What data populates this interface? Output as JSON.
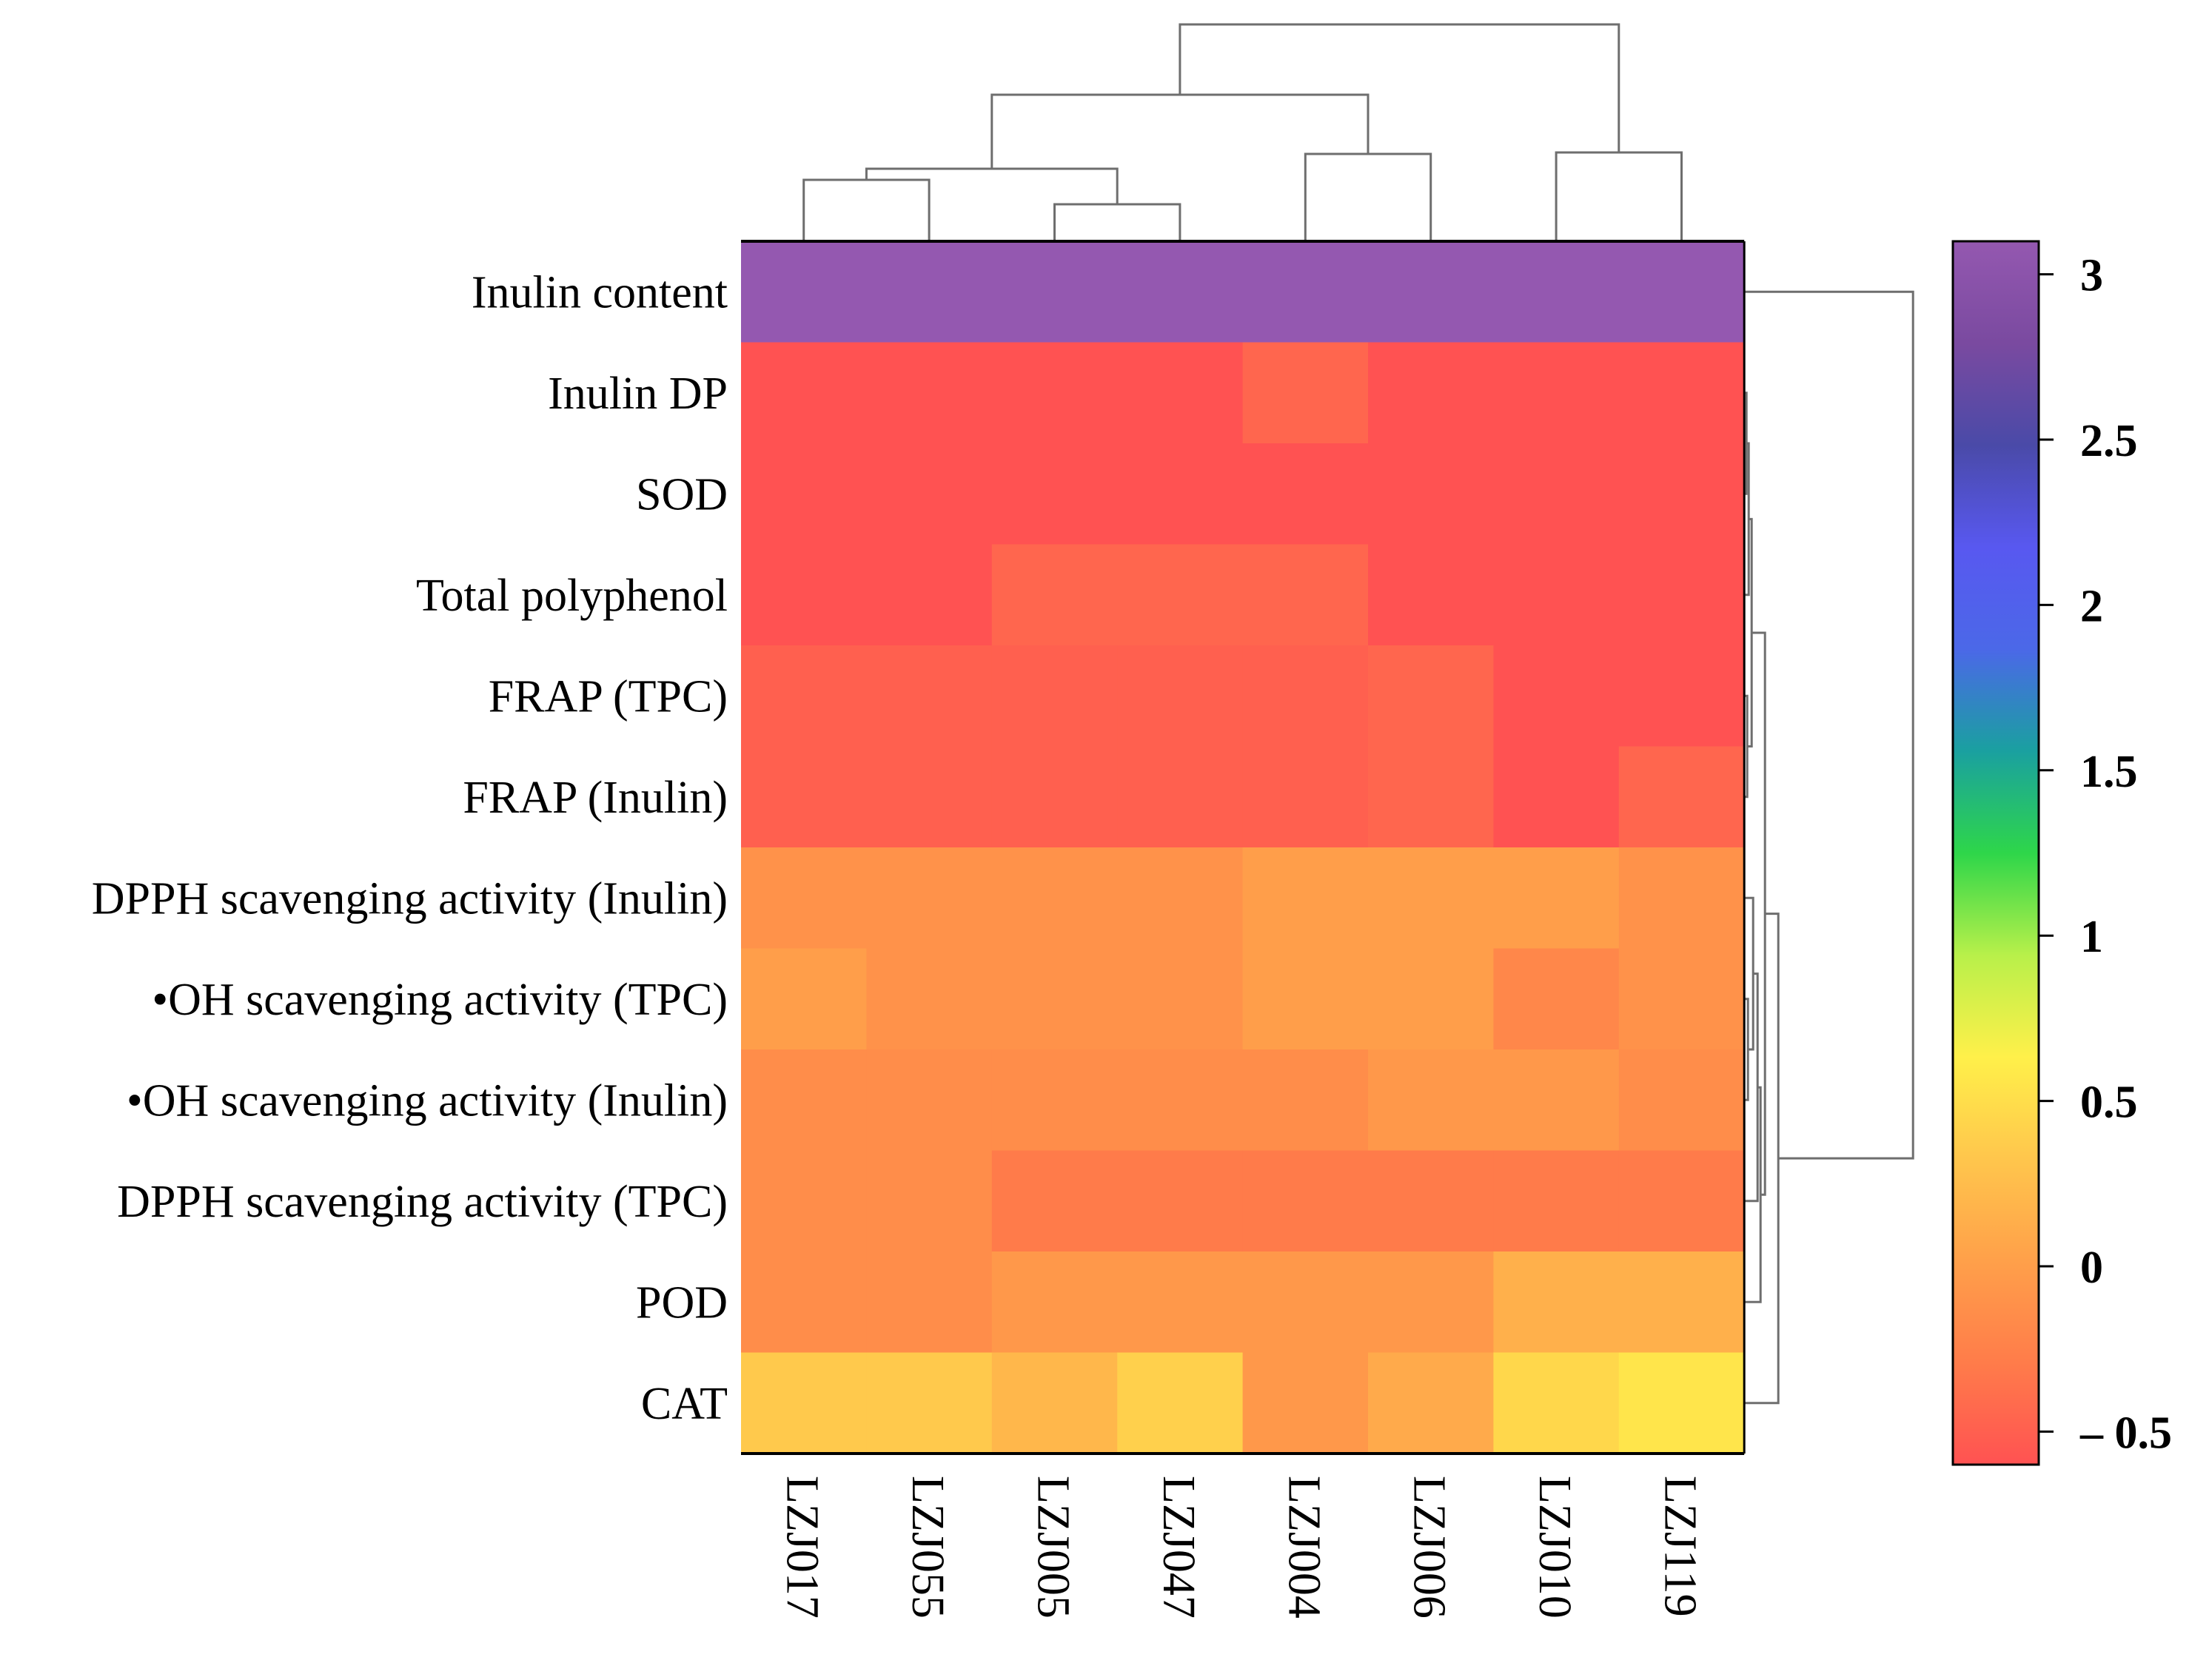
{
  "chart_data": {
    "type": "heatmap",
    "rows": [
      "Inulin content",
      "Inulin DP",
      "SOD",
      "Total polyphenol",
      "FRAP (TPC)",
      "FRAP (Inulin)",
      "DPPH scavenging activity (Inulin)",
      "•OH scavenging activity (TPC)",
      "•OH scavenging activity (Inulin)",
      "DPPH scavenging activity (TPC)",
      "POD",
      "CAT"
    ],
    "columns": [
      "LZJ017",
      "LZJ055",
      "LZJ005",
      "LZJ047",
      "LZJ004",
      "LZJ006",
      "LZJ010",
      "LZJ119"
    ],
    "values": [
      [
        3.1,
        3.1,
        3.1,
        3.1,
        3.1,
        3.1,
        3.1,
        3.1
      ],
      [
        -0.6,
        -0.6,
        -0.6,
        -0.6,
        -0.45,
        -0.6,
        -0.6,
        -0.6
      ],
      [
        -0.6,
        -0.6,
        -0.6,
        -0.6,
        -0.6,
        -0.6,
        -0.6,
        -0.6
      ],
      [
        -0.6,
        -0.6,
        -0.45,
        -0.45,
        -0.45,
        -0.6,
        -0.6,
        -0.6
      ],
      [
        -0.5,
        -0.5,
        -0.5,
        -0.5,
        -0.5,
        -0.45,
        -0.6,
        -0.6
      ],
      [
        -0.5,
        -0.5,
        -0.5,
        -0.5,
        -0.5,
        -0.45,
        -0.6,
        -0.45
      ],
      [
        -0.1,
        -0.1,
        -0.1,
        -0.1,
        0.0,
        0.0,
        0.0,
        -0.1
      ],
      [
        0.0,
        -0.1,
        -0.1,
        -0.1,
        0.0,
        0.0,
        -0.2,
        -0.1
      ],
      [
        -0.15,
        -0.15,
        -0.15,
        -0.15,
        -0.15,
        -0.05,
        -0.05,
        -0.15
      ],
      [
        -0.15,
        -0.15,
        -0.3,
        -0.3,
        -0.3,
        -0.3,
        -0.3,
        -0.3
      ],
      [
        -0.15,
        -0.15,
        -0.05,
        -0.05,
        -0.05,
        -0.05,
        0.15,
        0.15
      ],
      [
        0.35,
        0.35,
        0.2,
        0.4,
        -0.05,
        0.1,
        0.45,
        0.55
      ]
    ],
    "colorbar": {
      "ticks": [
        3,
        2.5,
        2,
        1.5,
        1,
        0.5,
        0,
        -0.5
      ],
      "tick_labels": [
        "3",
        "2.5",
        "2",
        "1.5",
        "1",
        "0.5",
        "0",
        "– 0.5"
      ],
      "range": [
        -0.6,
        3.1
      ],
      "colors": [
        "#ff5252",
        "#ff7c4a",
        "#ffa04a",
        "#ffc64c",
        "#fff04a",
        "#b8f04a",
        "#2ed64a",
        "#1aa0a0",
        "#4b68e8",
        "#5858f0",
        "#4a4aa8",
        "#7a4aa0",
        "#9458b0"
      ]
    },
    "col_dendrogram": true,
    "row_dendrogram": true
  }
}
